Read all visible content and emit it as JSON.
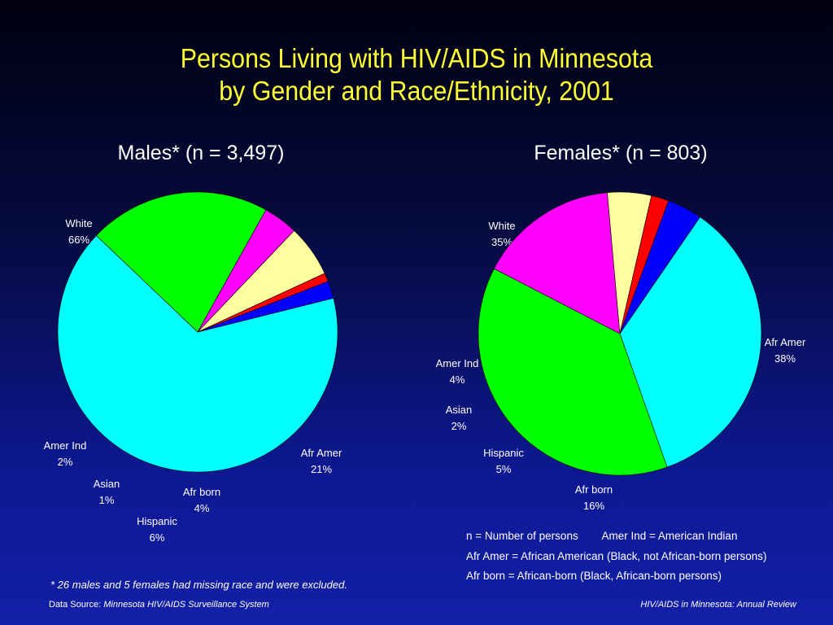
{
  "title_line1": "Persons Living with HIV/AIDS in Minnesota",
  "title_line2": "by Gender and Race/Ethnicity, 2001",
  "chart_data": [
    {
      "type": "pie",
      "title": "Males* (n = 3,497)",
      "slices": [
        {
          "label": "White",
          "pct_text": "66%",
          "value": 66,
          "color": "#00ffff"
        },
        {
          "label": "Afr Amer",
          "pct_text": "21%",
          "value": 21,
          "color": "#00ff00"
        },
        {
          "label": "Afr born",
          "pct_text": "4%",
          "value": 4,
          "color": "#ff00ff"
        },
        {
          "label": "Hispanic",
          "pct_text": "6%",
          "value": 6,
          "color": "#ffffa0"
        },
        {
          "label": "Asian",
          "pct_text": "1%",
          "value": 1,
          "color": "#ff0000"
        },
        {
          "label": "Amer Ind",
          "pct_text": "2%",
          "value": 2,
          "color": "#0000ff"
        }
      ]
    },
    {
      "type": "pie",
      "title": "Females* (n = 803)",
      "slices": [
        {
          "label": "White",
          "pct_text": "35%",
          "value": 35,
          "color": "#00ffff"
        },
        {
          "label": "Afr Amer",
          "pct_text": "38%",
          "value": 38,
          "color": "#00ff00"
        },
        {
          "label": "Afr born",
          "pct_text": "16%",
          "value": 16,
          "color": "#ff00ff"
        },
        {
          "label": "Hispanic",
          "pct_text": "5%",
          "value": 5,
          "color": "#ffffa0"
        },
        {
          "label": "Asian",
          "pct_text": "2%",
          "value": 2,
          "color": "#ff0000"
        },
        {
          "label": "Amer Ind",
          "pct_text": "4%",
          "value": 4,
          "color": "#0000ff"
        }
      ]
    }
  ],
  "legend": {
    "line1a": "n = Number of persons",
    "line1b": "Amer Ind = American Indian",
    "line2": "Afr Amer = African American (Black, not African-born persons)",
    "line3": "Afr born = African-born (Black, African-born persons)"
  },
  "footnote": "* 26 males and 5  females had missing race and were excluded.",
  "footer": {
    "source_label": "Data Source:",
    "source_name": "Minnesota HIV/AIDS Surveillance System",
    "right": "HIV/AIDS in Minnesota: Annual Review"
  }
}
